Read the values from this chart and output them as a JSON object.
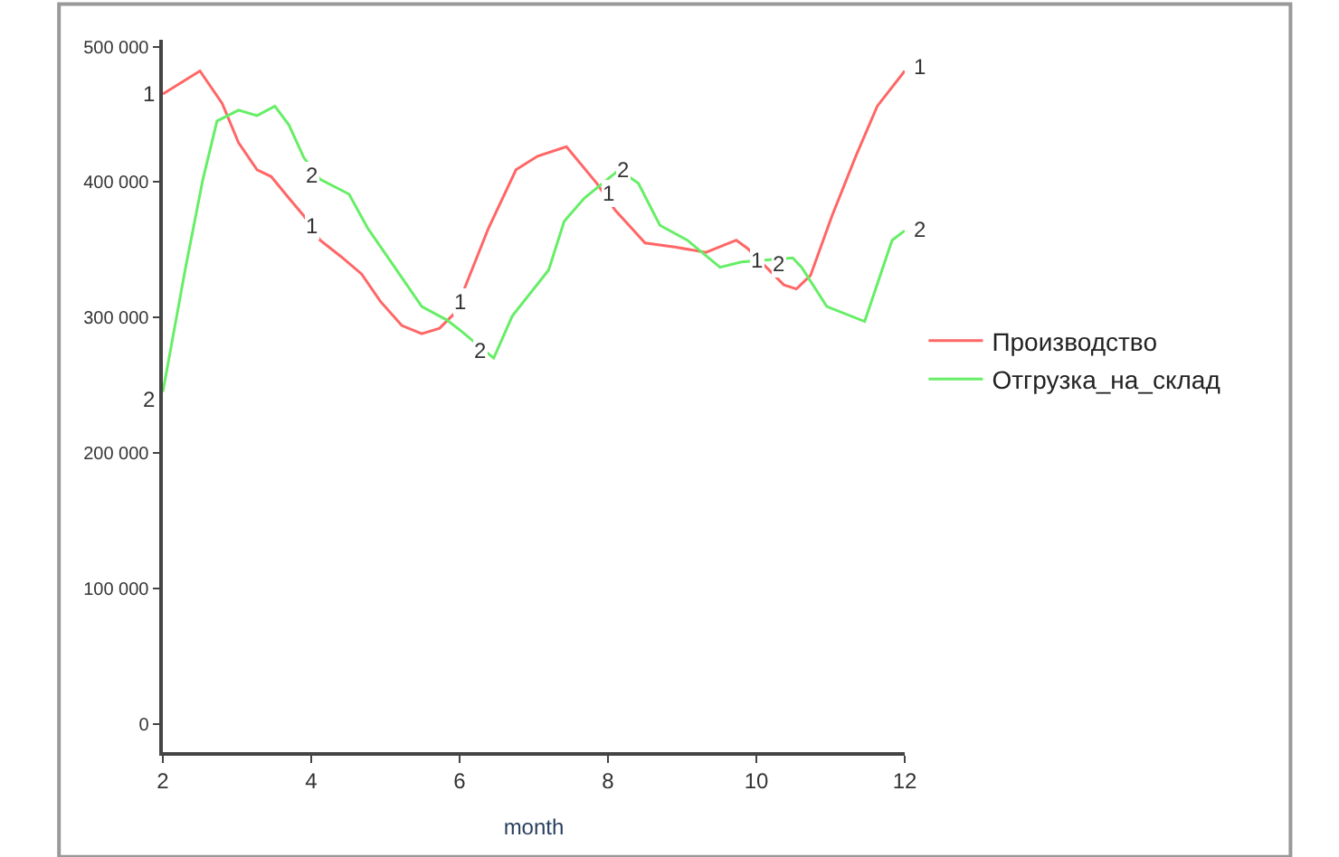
{
  "chart_data": {
    "type": "line",
    "xlabel": "month",
    "xlim": [
      2,
      12
    ],
    "xticks": [
      2,
      4,
      6,
      8,
      10,
      12
    ],
    "ylim": [
      -21000,
      505000
    ],
    "yticks": [
      0,
      {
        "value": 100000,
        "label": "100 000"
      },
      {
        "value": 200000,
        "label": "200 000"
      },
      {
        "value": 300000,
        "label": "300 000"
      },
      {
        "value": 400000,
        "label": "400 000"
      },
      {
        "value": 500000,
        "label": "500 000"
      }
    ],
    "legend": "right",
    "marker": "none",
    "line_style": "solid",
    "series": [
      {
        "name": "Производство",
        "color": "#ff6666",
        "x": [
          2,
          2.5,
          2.8,
          3.02,
          3.27,
          3.46,
          3.7,
          3.9,
          4.12,
          4.4,
          4.68,
          4.93,
          5.22,
          5.49,
          5.73,
          5.95,
          6.07,
          6.39,
          6.76,
          7.05,
          7.44,
          7.85,
          8.1,
          8.5,
          8.9,
          9.32,
          9.73,
          9.88,
          10.37,
          10.54,
          10.73,
          11.02,
          11.34,
          11.63,
          12
        ],
        "values": [
          465000,
          482000,
          458000,
          429000,
          409000,
          404000,
          388000,
          375000,
          357000,
          345000,
          332000,
          312000,
          294000,
          288000,
          292000,
          304000,
          322000,
          366000,
          409000,
          419000,
          426000,
          399000,
          379000,
          355000,
          352000,
          348000,
          357000,
          351000,
          324000,
          321000,
          331000,
          375000,
          419000,
          456000,
          482000
        ]
      },
      {
        "name": "Отгрузка_на_склад",
        "color": "#66ee66",
        "x": [
          2,
          2.3,
          2.54,
          2.73,
          3.02,
          3.27,
          3.51,
          3.7,
          3.9,
          4.12,
          4.51,
          4.76,
          5.1,
          5.49,
          5.83,
          6.02,
          6.46,
          6.71,
          7.2,
          7.41,
          7.68,
          8.15,
          8.41,
          8.7,
          9.07,
          9.51,
          9.8,
          10.49,
          10.61,
          10.95,
          11.46,
          11.83,
          12
        ],
        "values": [
          245000,
          335000,
          402000,
          445000,
          453000,
          449000,
          456000,
          442000,
          418000,
          402000,
          391000,
          366000,
          339000,
          308000,
          298000,
          290000,
          270000,
          301000,
          335000,
          371000,
          388000,
          409000,
          399000,
          368000,
          357000,
          337000,
          341000,
          344000,
          337000,
          308000,
          297000,
          357000,
          364000
        ]
      }
    ],
    "annotations": [
      {
        "text": "1",
        "x": 2,
        "y": 465000
      },
      {
        "text": "1",
        "x": 4,
        "y": 368000
      },
      {
        "text": "1",
        "x": 6,
        "y": 312000
      },
      {
        "text": "1",
        "x": 8,
        "y": 392000
      },
      {
        "text": "1",
        "x": 10,
        "y": 342000
      },
      {
        "text": "1",
        "x": 12,
        "y": 485000
      },
      {
        "text": "2",
        "x": 2,
        "y": 240000
      },
      {
        "text": "2",
        "x": 4,
        "y": 405000
      },
      {
        "text": "2",
        "x": 6.27,
        "y": 275000
      },
      {
        "text": "2",
        "x": 8.2,
        "y": 409000
      },
      {
        "text": "2",
        "x": 10.3,
        "y": 340000
      },
      {
        "text": "2",
        "x": 12,
        "y": 365000
      }
    ]
  }
}
